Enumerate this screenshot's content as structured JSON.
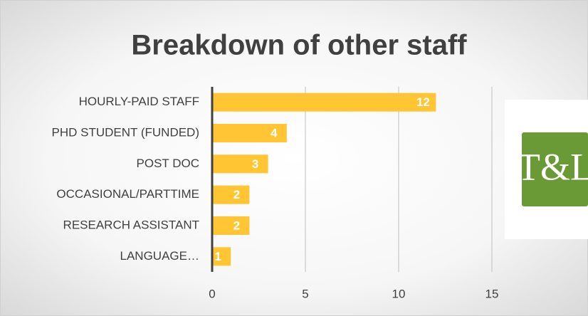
{
  "chart_data": {
    "type": "hbar",
    "title": "Breakdown of other staff",
    "categories": [
      "HOURLY-PAID STAFF",
      "PHD STUDENT (FUNDED)",
      "POST DOC",
      "OCCASIONAL/PARTTIME",
      "RESEARCH ASSISTANT",
      "LANGUAGE…"
    ],
    "values": [
      12,
      4,
      3,
      2,
      2,
      1
    ],
    "color": "#ffc532",
    "xlim": [
      0,
      15
    ],
    "xticks": [
      0,
      5,
      10,
      15
    ],
    "grid": true
  },
  "logo": {
    "text": "T&L",
    "color": "#6a9a35"
  }
}
